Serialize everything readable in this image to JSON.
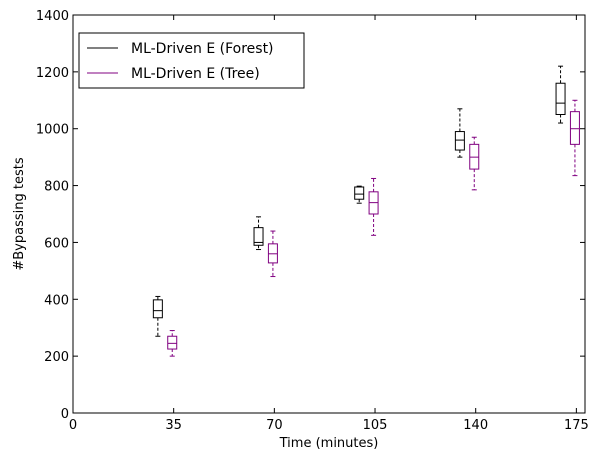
{
  "chart_data": {
    "type": "box",
    "xlabel": "Time (minutes)",
    "ylabel": "#Bypassing tests",
    "xlim": [
      0,
      178
    ],
    "ylim": [
      0,
      1400
    ],
    "xticks": [
      "0",
      "35",
      "70",
      "105",
      "140",
      "175"
    ],
    "yticks": [
      "0",
      "200",
      "400",
      "600",
      "800",
      "1000",
      "1200",
      "1400"
    ],
    "grid": false,
    "legend_position": "top-left",
    "series": [
      {
        "name": "ML-Driven E (Forest)",
        "color": "#000000",
        "boxes": [
          {
            "x": 29.5,
            "whisker_low": 270,
            "q1": 335,
            "median": 360,
            "q3": 398,
            "whisker_high": 410
          },
          {
            "x": 64.5,
            "whisker_low": 575,
            "q1": 590,
            "median": 600,
            "q3": 652,
            "whisker_high": 690
          },
          {
            "x": 99.5,
            "whisker_low": 738,
            "q1": 752,
            "median": 770,
            "q3": 795,
            "whisker_high": 798
          },
          {
            "x": 134.5,
            "whisker_low": 900,
            "q1": 925,
            "median": 960,
            "q3": 990,
            "whisker_high": 1070
          },
          {
            "x": 169.5,
            "whisker_low": 1020,
            "q1": 1050,
            "median": 1090,
            "q3": 1160,
            "whisker_high": 1220
          }
        ]
      },
      {
        "name": "ML-Driven E (Tree)",
        "color": "#800080",
        "boxes": [
          {
            "x": 34.5,
            "whisker_low": 200,
            "q1": 225,
            "median": 245,
            "q3": 270,
            "whisker_high": 290
          },
          {
            "x": 69.5,
            "whisker_low": 480,
            "q1": 528,
            "median": 560,
            "q3": 595,
            "whisker_high": 640
          },
          {
            "x": 104.5,
            "whisker_low": 625,
            "q1": 700,
            "median": 740,
            "q3": 778,
            "whisker_high": 825
          },
          {
            "x": 139.5,
            "whisker_low": 785,
            "q1": 858,
            "median": 900,
            "q3": 945,
            "whisker_high": 970
          },
          {
            "x": 174.5,
            "whisker_low": 835,
            "q1": 945,
            "median": 1000,
            "q3": 1060,
            "whisker_high": 1100
          }
        ]
      }
    ]
  }
}
